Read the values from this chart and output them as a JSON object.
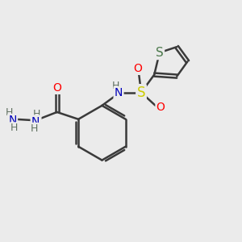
{
  "bg_color": "#ebebeb",
  "bond_color": "#3a3a3a",
  "bond_width": 1.8,
  "atom_colors": {
    "O": "#ff0000",
    "N": "#0000bb",
    "S_sulfo": "#cccc00",
    "S_thio": "#4d7a4d",
    "H": "#607060",
    "C": "#3a3a3a"
  },
  "xlim": [
    0,
    10
  ],
  "ylim": [
    0,
    10
  ]
}
